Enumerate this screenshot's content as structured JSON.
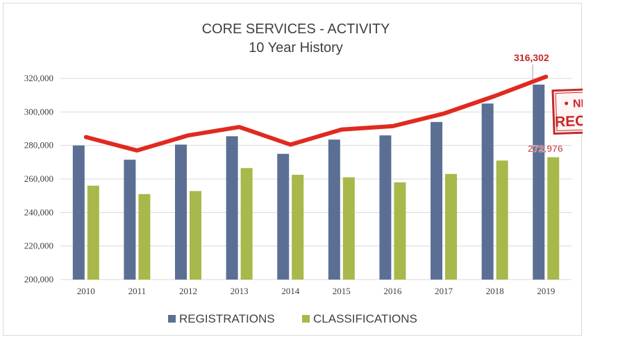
{
  "chart_data": {
    "type": "bar",
    "title": "CORE SERVICES - ACTIVITY",
    "subtitle": "10 Year History",
    "categories": [
      "2010",
      "2011",
      "2012",
      "2013",
      "2014",
      "2015",
      "2016",
      "2017",
      "2018",
      "2019"
    ],
    "series": [
      {
        "name": "REGISTRATIONS",
        "type": "bar",
        "color": "#5b6f95",
        "values": [
          280000,
          271500,
          280500,
          285500,
          275000,
          283500,
          286000,
          294000,
          305000,
          316302
        ]
      },
      {
        "name": "CLASSIFICATIONS",
        "type": "bar",
        "color": "#a8b84a",
        "values": [
          256000,
          251000,
          252800,
          266500,
          262500,
          261000,
          258000,
          263000,
          271000,
          272976
        ]
      },
      {
        "type": "line",
        "color": "#e02a1f",
        "values": [
          285000,
          277000,
          286000,
          291000,
          280500,
          289500,
          291500,
          299000,
          309500,
          321000
        ]
      }
    ],
    "ylim": [
      200000,
      320000
    ],
    "yticks": [
      "200,000",
      "220,000",
      "240,000",
      "260,000",
      "280,000",
      "300,000",
      "320,000"
    ],
    "ytick_values": [
      200000,
      220000,
      240000,
      260000,
      280000,
      300000,
      320000
    ],
    "grid": true,
    "legend": "bottom",
    "annotations": {
      "registrations_2019": "316,302",
      "classifications_2019": "272,976",
      "stamp_line1": "NEW",
      "stamp_line2": "RECORD"
    }
  }
}
